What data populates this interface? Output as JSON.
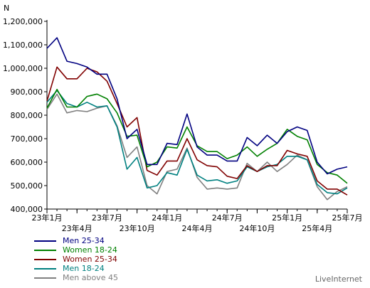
{
  "chart_data": {
    "type": "line",
    "ylabel": "N",
    "ylim": [
      400000,
      1200000
    ],
    "yticks": [
      400000,
      500000,
      600000,
      700000,
      800000,
      900000,
      1000000,
      1100000,
      1200000
    ],
    "ytick_labels": [
      "400,000",
      "500,000",
      "600,000",
      "700,000",
      "800,000",
      "900,000",
      "1,000,000",
      "1,100,000",
      "1,200,000"
    ],
    "xticks_upper": [
      {
        "index": 0,
        "label": "23年1月"
      },
      {
        "index": 6,
        "label": "23年7月"
      },
      {
        "index": 12,
        "label": "24年1月"
      },
      {
        "index": 18,
        "label": "24年7月"
      },
      {
        "index": 24,
        "label": "25年1月"
      },
      {
        "index": 30,
        "label": "25年7月"
      }
    ],
    "xticks_lower": [
      {
        "index": 3,
        "label": "23年4月"
      },
      {
        "index": 9,
        "label": "23年10月"
      },
      {
        "index": 15,
        "label": "24年4月"
      },
      {
        "index": 21,
        "label": "24年10月"
      },
      {
        "index": 27,
        "label": "25年4月"
      }
    ],
    "grid": false,
    "legend_position": "bottom-left",
    "n_points": 31,
    "series": [
      {
        "name": "Men 25-34",
        "color": "#000080",
        "values": [
          1085000,
          1130000,
          1030000,
          1020000,
          1005000,
          975000,
          975000,
          870000,
          700000,
          740000,
          590000,
          590000,
          680000,
          675000,
          805000,
          665000,
          630000,
          630000,
          605000,
          605000,
          705000,
          670000,
          715000,
          680000,
          730000,
          750000,
          735000,
          600000,
          550000,
          570000,
          580000
        ]
      },
      {
        "name": "Women 18-24",
        "color": "#008000",
        "values": [
          830000,
          910000,
          835000,
          835000,
          880000,
          890000,
          870000,
          810000,
          710000,
          715000,
          580000,
          600000,
          665000,
          660000,
          750000,
          670000,
          645000,
          645000,
          615000,
          630000,
          665000,
          625000,
          655000,
          680000,
          740000,
          710000,
          695000,
          590000,
          555000,
          545000,
          510000
        ]
      },
      {
        "name": "Women 25-34",
        "color": "#800000",
        "values": [
          860000,
          1005000,
          955000,
          955000,
          1000000,
          985000,
          945000,
          850000,
          750000,
          790000,
          565000,
          545000,
          605000,
          605000,
          700000,
          610000,
          585000,
          580000,
          540000,
          530000,
          585000,
          560000,
          585000,
          585000,
          650000,
          635000,
          625000,
          520000,
          485000,
          485000,
          460000
        ]
      },
      {
        "name": "Men 18-24",
        "color": "#008080",
        "values": [
          855000,
          905000,
          850000,
          835000,
          855000,
          835000,
          840000,
          750000,
          570000,
          620000,
          490000,
          500000,
          555000,
          545000,
          655000,
          545000,
          520000,
          525000,
          510000,
          520000,
          580000,
          560000,
          580000,
          590000,
          625000,
          625000,
          610000,
          505000,
          470000,
          465000,
          490000
        ]
      },
      {
        "name": "Men above 45",
        "color": "#808080",
        "values": [
          825000,
          890000,
          810000,
          820000,
          815000,
          830000,
          840000,
          755000,
          620000,
          665000,
          500000,
          465000,
          560000,
          570000,
          660000,
          535000,
          485000,
          490000,
          485000,
          490000,
          595000,
          560000,
          600000,
          560000,
          590000,
          630000,
          610000,
          495000,
          440000,
          475000,
          495000
        ]
      }
    ]
  },
  "footer": {
    "credit": "LiveInternet"
  }
}
